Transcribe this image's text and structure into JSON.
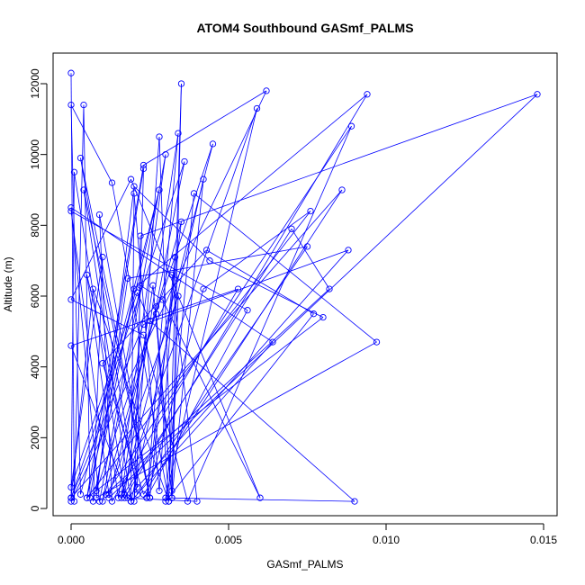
{
  "chart_data": {
    "type": "line",
    "title": "ATOM4 Southbound GASmf_PALMS",
    "xlabel": "GASmf_PALMS",
    "ylabel": "Altitude (m)",
    "xlim": [
      0,
      0.015
    ],
    "ylim": [
      0,
      12500
    ],
    "xticks": [
      0,
      0.005,
      0.01,
      0.015
    ],
    "xtick_labels": [
      "0.000",
      "0.005",
      "0.010",
      "0.015"
    ],
    "yticks": [
      0,
      2000,
      4000,
      6000,
      8000,
      10000,
      12000
    ],
    "ytick_labels": [
      "0",
      "2000",
      "4000",
      "6000",
      "8000",
      "10000",
      "12000"
    ],
    "marker": "open-circle",
    "color": "#0000ff",
    "grid": false,
    "series": [
      {
        "x": [
          0.0,
          0.0001,
          0.0004,
          0.0006,
          0.0023,
          0.002,
          0.0028,
          0.0032,
          0.0035,
          0.0031,
          0.0013,
          0.0,
          0.0003,
          0.0028,
          0.0005,
          0.0023,
          0.0062,
          0.0,
          0.0001,
          0.0017,
          0.0034,
          0.0024,
          0.0035,
          0.001,
          0.003,
          0.0015,
          0.0005,
          0.0021,
          0.0022,
          0.0148,
          0.0012,
          0.0027,
          0.0036,
          0.0,
          0.0007,
          0.0031,
          0.0027,
          0.0032,
          0.0042,
          0.0019,
          0.002,
          0.0028,
          0.0033,
          0.0025,
          0.0004,
          0.0019,
          0.0064,
          0.0,
          0.0009,
          0.0022,
          0.0029,
          0.006,
          0.0019,
          0.0,
          0.0023,
          0.0037,
          0.0089,
          0.0011,
          0.0082,
          0.007,
          0.0016,
          0.0045,
          0.0008,
          0.0018,
          0.0075,
          0.0021,
          0.0003,
          0.0025,
          0.0009,
          0.0013,
          0.0053,
          0.0,
          0.0018,
          0.0088,
          0.0023,
          0.0,
          0.0086,
          0.0023,
          0.001,
          0.0043,
          0.0077,
          0.003,
          0.0039,
          0.0097,
          0.0008,
          0.002,
          0.0044,
          0.008,
          0.0005,
          0.0076,
          0.0042,
          0.0024,
          0.0056,
          0.0,
          0.0012,
          0.0034,
          0.0032,
          0.0026,
          0.0016,
          0.0059,
          0.003,
          0.009,
          0.0025,
          0.0021,
          0.0,
          0.001,
          0.0007,
          0.002,
          0.0094,
          0.0017,
          0.004,
          0.0032
        ],
        "y": [
          12300,
          200,
          11400,
          300,
          9600,
          200,
          10500,
          500,
          12000,
          200,
          9200,
          11400,
          400,
          9000,
          300,
          9700,
          11800,
          200,
          9500,
          400,
          10600,
          300,
          8100,
          200,
          10000,
          300,
          6600,
          600,
          7700,
          11700,
          300,
          5700,
          9800,
          300,
          6200,
          200,
          5500,
          300,
          9300,
          200,
          8900,
          500,
          7100,
          300,
          9000,
          200,
          4700,
          8500,
          200,
          6300,
          5900,
          300,
          9300,
          5900,
          4900,
          200,
          10800,
          400,
          6200,
          7900,
          300,
          10300,
          500,
          6500,
          7400,
          400,
          9900,
          300,
          8300,
          200,
          6200,
          4600,
          300,
          7300,
          5200,
          300,
          9000,
          400,
          4100,
          7300,
          5500,
          200,
          8900,
          4700,
          300,
          9100,
          7000,
          5400,
          300,
          8400,
          6200,
          300,
          5600,
          8400,
          400,
          6000,
          300,
          6300,
          400,
          11300,
          300,
          200,
          5300,
          6100,
          600,
          7100,
          200,
          6200,
          11700,
          300,
          200,
          6600
        ]
      }
    ]
  }
}
